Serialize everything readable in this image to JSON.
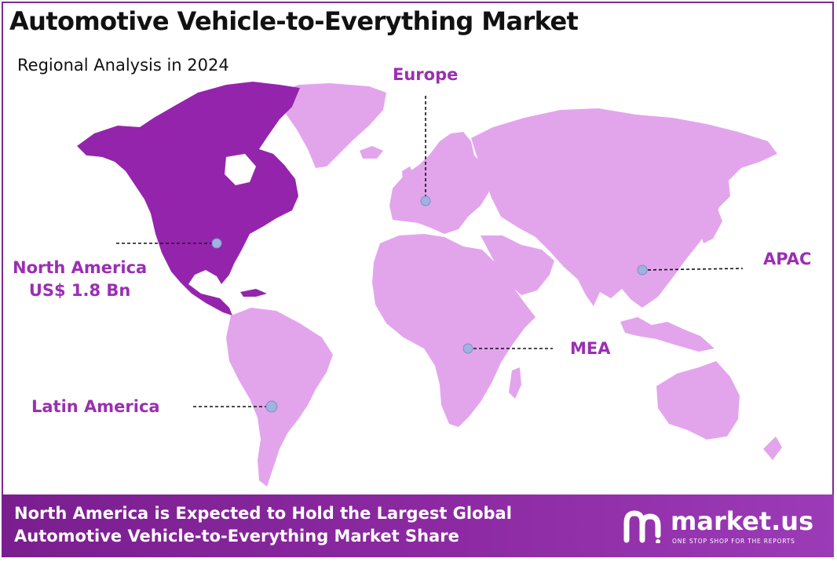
{
  "title": "Automotive Vehicle-to-Everything Market",
  "subtitle": "Regional Analysis in 2024",
  "regions": [
    {
      "name": "North America",
      "value": "US$ 1.8 Bn",
      "highlighted": true
    },
    {
      "name": "Europe"
    },
    {
      "name": "APAC"
    },
    {
      "name": "MEA"
    },
    {
      "name": "Latin America"
    }
  ],
  "colors": {
    "highlight": "#9524ad",
    "land": "#e2a5ec",
    "label": "#9b2fb2",
    "marker": "#9fb2e2"
  },
  "footer": {
    "line1": "North America is Expected to Hold the Largest Global",
    "line2": "Automotive Vehicle-to-Everything Market Share"
  },
  "brand": {
    "name": "market.us",
    "tagline": "ONE STOP SHOP FOR THE REPORTS",
    "icon": "market-us-logo-icon"
  }
}
